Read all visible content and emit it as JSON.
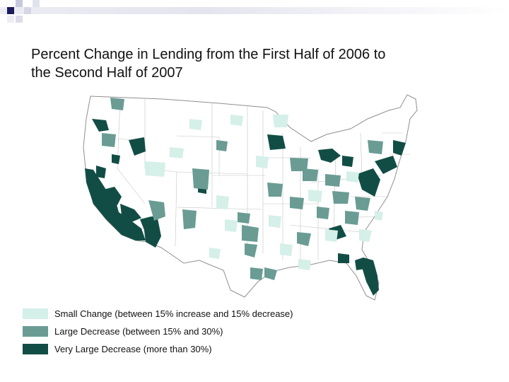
{
  "slide": {
    "title": "Percent Change in Lending from the First Half of 2006 to\nthe Second Half of 2007"
  },
  "legend": {
    "items": [
      {
        "label": "Small Change (between 15% increase and 15% decrease)",
        "color": "#d5efe9"
      },
      {
        "label": "Large Decrease (between 15% and 30%)",
        "color": "#6a9c94"
      },
      {
        "label": "Very Large Decrease (more than 30%)",
        "color": "#124d45"
      }
    ]
  },
  "map": {
    "subject": "United States counties by percent change in lending",
    "colors": {
      "small": "#d5efe9",
      "large": "#6a9c94",
      "very_large": "#124d45",
      "border": "#b9b9b9",
      "land": "#ffffff"
    }
  }
}
